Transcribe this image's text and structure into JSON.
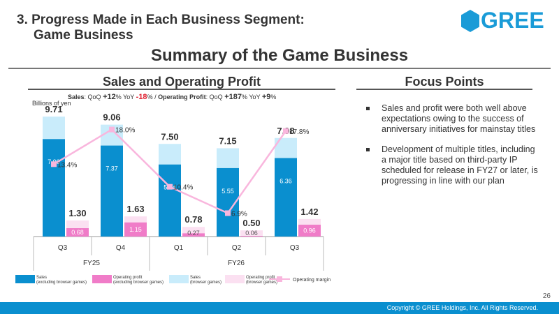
{
  "header": {
    "section_title_line1": "3. Progress Made in Each Business Segment:",
    "section_title_line2": "Game Business",
    "logo_text": "GREE",
    "main_title": "Summary of the Game Business"
  },
  "left_panel": {
    "title": "Sales and Operating Profit",
    "kpi": {
      "sales_label": "Sales",
      "qoq_label": "QoQ",
      "yoy_label": "YoY",
      "sales_qoq": "+12",
      "sales_yoy": "-18",
      "pct": "%",
      "sep": "/",
      "op_label": "Operating Profit",
      "op_qoq": "+187",
      "op_yoy": "+9"
    },
    "unit": "Billions of yen"
  },
  "right_panel": {
    "title": "Focus Points",
    "bullets": [
      "Sales and profit were both well above expectations owing to the success of anniversary initiatives for mainstay titles",
      "Development of multiple titles, including a major title based on third-party IP scheduled for release in FY27 or later, is progressing in line with our plan"
    ]
  },
  "chart_data": {
    "type": "bar",
    "categories": [
      "Q3",
      "Q4",
      "Q1",
      "Q2",
      "Q3"
    ],
    "fiscal_years": [
      {
        "label": "FY25",
        "quarters": [
          "Q3",
          "Q4"
        ]
      },
      {
        "label": "FY26",
        "quarters": [
          "Q1",
          "Q2",
          "Q3"
        ]
      }
    ],
    "series": [
      {
        "name": "Sales\n(excluding browser games)",
        "values": [
          7.9,
          7.37,
          5.84,
          5.55,
          6.36
        ],
        "color": "#0a8fcf"
      },
      {
        "name": "Sales\n(browser games)",
        "values": [
          1.81,
          1.69,
          1.66,
          1.6,
          1.62
        ],
        "color": "#c9ecfb"
      },
      {
        "name": "Operating profit\n(excluding browser games)",
        "values": [
          0.68,
          1.15,
          0.27,
          0.06,
          0.96
        ],
        "color": "#f07cc8"
      },
      {
        "name": "Operating profit\n(browser games)",
        "values": [
          0.62,
          0.48,
          0.51,
          0.44,
          0.46
        ],
        "color": "#fbe0f1"
      },
      {
        "name": "Operating margin",
        "values": [
          13.4,
          18.0,
          10.4,
          6.9,
          17.8
        ],
        "unit": "%",
        "color": "#f9b6dd"
      }
    ],
    "sales_totals": [
      "9.71",
      "9.06",
      "7.50",
      "7.15",
      "7.98"
    ],
    "op_totals": [
      "1.30",
      "1.63",
      "0.78",
      "0.50",
      "1.42"
    ],
    "sales_labels": [
      "7.90",
      "7.37",
      "5.84",
      "5.55",
      "6.36"
    ],
    "op_labels": [
      "0.68",
      "1.15",
      "0.27",
      "0.06",
      "0.96"
    ],
    "margin_labels": [
      "13.4%",
      "18.0%",
      "10.4%",
      "6.9%",
      "17.8%"
    ],
    "legend": [
      {
        "line1": "Sales",
        "line2": "(excluding browser games)",
        "color": "#0a8fcf"
      },
      {
        "line1": "Operating profit",
        "line2": "(excluding browser games)",
        "color": "#f07cc8"
      },
      {
        "line1": "Sales",
        "line2": "(browser games)",
        "color": "#c9ecfb"
      },
      {
        "line1": "Operating profit",
        "line2": "(browser games)",
        "color": "#fbe0f1"
      },
      {
        "line1": "Operating margin",
        "line2": "",
        "color": "#f9b6dd"
      }
    ]
  },
  "footer": {
    "page_number": "26",
    "copyright": "Copyright © GREE Holdings, Inc. All Rights Reserved."
  }
}
